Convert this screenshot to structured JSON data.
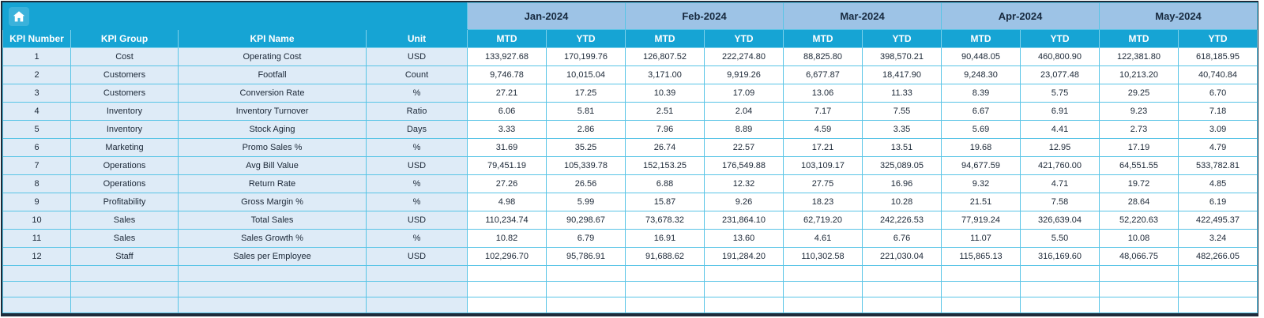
{
  "colors": {
    "header_cyan": "#16a4d4",
    "month_blue": "#9dc3e6",
    "left_cell_blue": "#deebf7",
    "grid_cyan": "#58c4e6",
    "outer_border": "#1e2b3a",
    "header_text": "#ffffff",
    "data_text": "#1b2736"
  },
  "icons": {
    "home": "home-icon"
  },
  "months": [
    "Jan-2024",
    "Feb-2024",
    "Mar-2024",
    "Apr-2024",
    "May-2024"
  ],
  "sub_headers": [
    "MTD",
    "YTD"
  ],
  "left_headers": [
    "KPI Number",
    "KPI Group",
    "KPI Name",
    "Unit"
  ],
  "empty_rows": 3,
  "rows": [
    {
      "num": "1",
      "group": "Cost",
      "name": "Operating Cost",
      "unit": "USD",
      "values": [
        "133,927.68",
        "170,199.76",
        "126,807.52",
        "222,274.80",
        "88,825.80",
        "398,570.21",
        "90,448.05",
        "460,800.90",
        "122,381.80",
        "618,185.95"
      ]
    },
    {
      "num": "2",
      "group": "Customers",
      "name": "Footfall",
      "unit": "Count",
      "values": [
        "9,746.78",
        "10,015.04",
        "3,171.00",
        "9,919.26",
        "6,677.87",
        "18,417.90",
        "9,248.30",
        "23,077.48",
        "10,213.20",
        "40,740.84"
      ]
    },
    {
      "num": "3",
      "group": "Customers",
      "name": "Conversion Rate",
      "unit": "%",
      "values": [
        "27.21",
        "17.25",
        "10.39",
        "17.09",
        "13.06",
        "11.33",
        "8.39",
        "5.75",
        "29.25",
        "6.70"
      ]
    },
    {
      "num": "4",
      "group": "Inventory",
      "name": "Inventory Turnover",
      "unit": "Ratio",
      "values": [
        "6.06",
        "5.81",
        "2.51",
        "2.04",
        "7.17",
        "7.55",
        "6.67",
        "6.91",
        "9.23",
        "7.18"
      ]
    },
    {
      "num": "5",
      "group": "Inventory",
      "name": "Stock Aging",
      "unit": "Days",
      "values": [
        "3.33",
        "2.86",
        "7.96",
        "8.89",
        "4.59",
        "3.35",
        "5.69",
        "4.41",
        "2.73",
        "3.09"
      ]
    },
    {
      "num": "6",
      "group": "Marketing",
      "name": "Promo Sales %",
      "unit": "%",
      "values": [
        "31.69",
        "35.25",
        "26.74",
        "22.57",
        "17.21",
        "13.51",
        "19.68",
        "12.95",
        "17.19",
        "4.79"
      ]
    },
    {
      "num": "7",
      "group": "Operations",
      "name": "Avg Bill Value",
      "unit": "USD",
      "values": [
        "79,451.19",
        "105,339.78",
        "152,153.25",
        "176,549.88",
        "103,109.17",
        "325,089.05",
        "94,677.59",
        "421,760.00",
        "64,551.55",
        "533,782.81"
      ]
    },
    {
      "num": "8",
      "group": "Operations",
      "name": "Return Rate",
      "unit": "%",
      "values": [
        "27.26",
        "26.56",
        "6.88",
        "12.32",
        "27.75",
        "16.96",
        "9.32",
        "4.71",
        "19.72",
        "4.85"
      ]
    },
    {
      "num": "9",
      "group": "Profitability",
      "name": "Gross Margin %",
      "unit": "%",
      "values": [
        "4.98",
        "5.99",
        "15.87",
        "9.26",
        "18.23",
        "10.28",
        "21.51",
        "7.58",
        "28.64",
        "6.19"
      ]
    },
    {
      "num": "10",
      "group": "Sales",
      "name": "Total Sales",
      "unit": "USD",
      "values": [
        "110,234.74",
        "90,298.67",
        "73,678.32",
        "231,864.10",
        "62,719.20",
        "242,226.53",
        "77,919.24",
        "326,639.04",
        "52,220.63",
        "422,495.37"
      ]
    },
    {
      "num": "11",
      "group": "Sales",
      "name": "Sales Growth %",
      "unit": "%",
      "values": [
        "10.82",
        "6.79",
        "16.91",
        "13.60",
        "4.61",
        "6.76",
        "11.07",
        "5.50",
        "10.08",
        "3.24"
      ]
    },
    {
      "num": "12",
      "group": "Staff",
      "name": "Sales per Employee",
      "unit": "USD",
      "values": [
        "102,296.70",
        "95,786.91",
        "91,688.62",
        "191,284.20",
        "110,302.58",
        "221,030.04",
        "115,865.13",
        "316,169.60",
        "48,066.75",
        "482,266.05"
      ]
    }
  ]
}
